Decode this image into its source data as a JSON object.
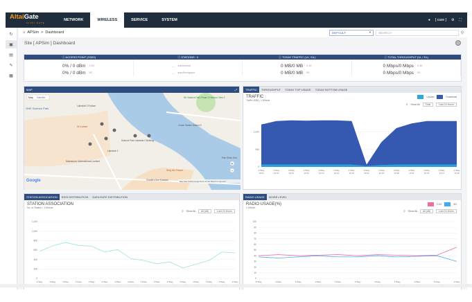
{
  "brand": {
    "name_a": "Altai",
    "name_b": "Gate",
    "tag": "ALTAI GATE"
  },
  "nav": {
    "items": [
      "NETWORK",
      "WIRELESS",
      "SERVICE",
      "SYSTEM"
    ],
    "active": "WIRELESS"
  },
  "topright": {
    "user": "[ case ]"
  },
  "breadcrumb": {
    "home": "APSim",
    "sep": ">",
    "page": "Dashboard",
    "select_value": "DEFAULT",
    "search_placeholder": "SEARCH"
  },
  "page_title": "Site [ APSim ] Dashboard",
  "stats": {
    "headers": [
      "ACCESS POINT (2/300)",
      "STATIONS : 0",
      "TODAY TRAFFIC (UL / DL)",
      "TOTAL THROUGHPUT (UL / DL)"
    ],
    "ap": {
      "v1": "0% / 0 dBm",
      "n1": "2.4G",
      "v2": "0% / 0 dBm",
      "n2": "5G"
    },
    "st": {
      "n1": "auto/normal",
      "n2": "auto/throughput"
    },
    "tt": {
      "v1": "0 MB/0 MB",
      "n1": "2.4G",
      "v2": "0 MB/0 MB",
      "n2": "5G"
    },
    "tp": {
      "v1": "0 Mbps/0 Mbps",
      "n1": "2.4G",
      "v2": "0 Mbps/0 Mbps",
      "n2": "5G"
    }
  },
  "map": {
    "header": "MAP",
    "tabs": [
      "Map",
      "Satellite"
    ],
    "labels": [
      "ONE Science Park",
      "Lakeside 2 Podium",
      "Hi Corner",
      "Science Park Lakeside 2 Building",
      "Lakeside 2",
      "Mainstone International Limited",
      "Sing Mo Flower",
      "HK Science Park Phase 3 Harbour View 2",
      "Coach Station District D",
      "Pak Shek Kok",
      "Charlie's Sun Kowloon"
    ],
    "footer": "Map data ©2023 Google  Terms of Use  Report a map error",
    "google": "Google",
    "zoom_in": "+",
    "zoom_out": "−"
  },
  "traffic": {
    "tabs": [
      "TRAFFIC",
      "THROUGHPUT",
      "TODAY TOP USAGE",
      "TODAY BOTTOM USAGE"
    ],
    "active": "TRAFFIC",
    "title": "TRAFFIC",
    "sub": "Traffic (MB) / 1 Minute",
    "legend_up": "Upload",
    "legend_down": "Download",
    "show_all": "Show All",
    "sel1": "Total",
    "sel2": "Last 24 Hours",
    "color_up": "#29a8e0",
    "color_down": "#3558b0"
  },
  "station": {
    "tabs": [
      "STATION ASSOCIATION",
      "RSSI DISTRIBUTION",
      "DATA RATE DISTRIBUTION"
    ],
    "active": "STATION ASSOCIATION",
    "title": "STATION ASSOCIATION",
    "sub": "No. of Station / 1 Minute",
    "show_all": "Show All",
    "sel1": "All (All)",
    "sel2": "Last 24 Hours"
  },
  "radio": {
    "tabs": [
      "RADIO USAGE",
      "NOISE LEVEL"
    ],
    "active": "RADIO USAGE",
    "title": "RADIO USAGE(%)",
    "sub": "1 Minute",
    "legend_a": "2.4G",
    "legend_b": "5G",
    "show_all": "Show All",
    "sel1": "All (All)",
    "sel2": "Last 24 Hours",
    "color_a": "#ec6f9e",
    "color_b": "#44aaf0"
  },
  "chart_data": [
    {
      "type": "area",
      "title": "TRAFFIC",
      "ylabel": "Traffic (MB)",
      "ylim": [
        0,
        1500
      ],
      "yticks": [
        0,
        500,
        1000
      ],
      "x": [
        "17May 19:01",
        "17May 19:04",
        "17May 19:07",
        "17May 19:10",
        "17May 19:13",
        "17May 19:16",
        "17May 19:19",
        "17May 19:22",
        "17May 19:25",
        "17May 19:28",
        "17May 19:31",
        "17May 19:34",
        "17May 19:37",
        "17May 19:40"
      ],
      "series": [
        {
          "name": "Download",
          "values": [
            1200,
            1300,
            1320,
            1310,
            1320,
            1320,
            1300,
            50,
            700,
            1100,
            1230,
            1300,
            1300,
            1300
          ]
        },
        {
          "name": "Upload",
          "values": [
            60,
            60,
            60,
            60,
            60,
            60,
            60,
            20,
            50,
            60,
            60,
            60,
            60,
            60
          ]
        }
      ]
    },
    {
      "type": "line",
      "title": "STATION ASSOCIATION",
      "ylabel": "No. of Station",
      "ylim": [
        0,
        1200
      ],
      "yticks": [
        0,
        200,
        400,
        600,
        800,
        1000,
        1200
      ],
      "x": [
        "17May 16:27",
        "17May 16:28",
        "17May 16:29",
        "17May 16:30",
        "17May 16:31",
        "17May 16:32",
        "17May 16:33",
        "17May 16:34",
        "17May 16:35",
        "17May 16:36",
        "17May 16:37",
        "17May 16:38",
        "17May 16:39",
        "17May 16:40",
        "17May 16:41",
        "17May 16:42"
      ],
      "series": [
        {
          "name": "Stations",
          "values": [
            570,
            690,
            760,
            700,
            680,
            560,
            610,
            420,
            380,
            310,
            350,
            220,
            300,
            380,
            560,
            540
          ]
        }
      ]
    },
    {
      "type": "line",
      "title": "RADIO USAGE(%)",
      "ylabel": "%",
      "ylim": [
        0,
        100
      ],
      "yticks": [
        0,
        10,
        20,
        30,
        40,
        50,
        60,
        70,
        80,
        90,
        100
      ],
      "x": [
        "17May 20:11",
        "17May 20:14",
        "17May 20:17",
        "17May 20:20",
        "17May 20:23",
        "17May 20:26",
        "17May 20:29",
        "17May 20:32",
        "17May 20:35",
        "17May 20:38",
        "17May 20:41"
      ],
      "series": [
        {
          "name": "2.4G",
          "values": [
            40,
            42,
            40,
            41,
            42,
            40,
            42,
            41,
            40,
            41,
            55
          ]
        },
        {
          "name": "5G",
          "values": [
            38,
            36,
            38,
            40,
            38,
            38,
            40,
            38,
            39,
            40,
            30
          ]
        }
      ]
    }
  ]
}
